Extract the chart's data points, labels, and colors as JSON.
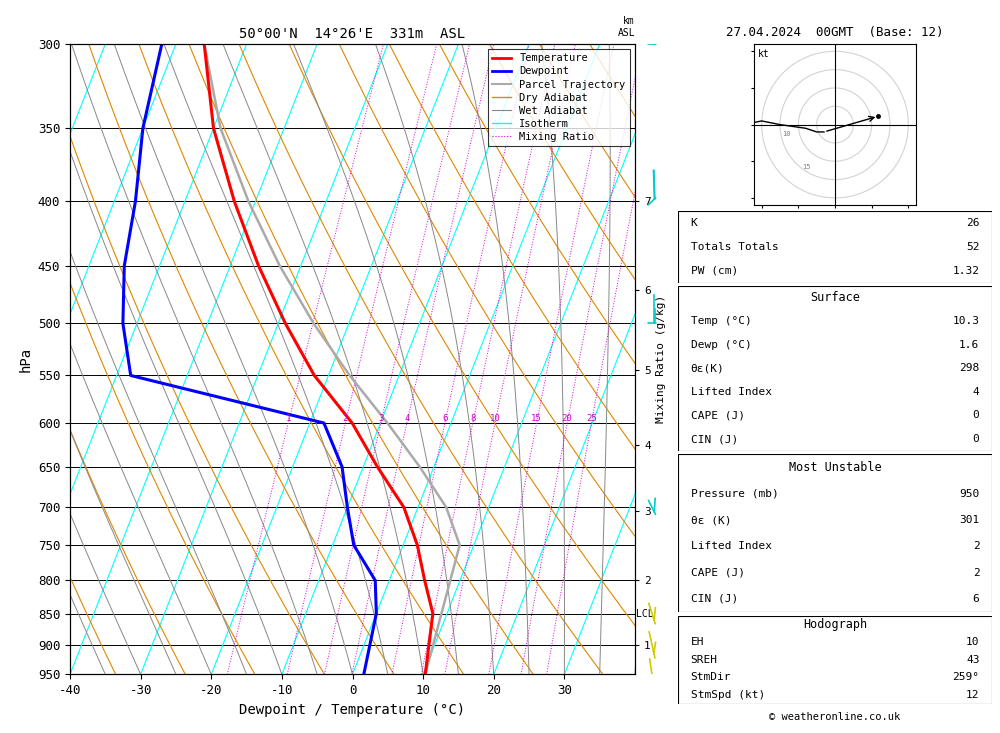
{
  "title_left": "50°00'N  14°26'E  331m  ASL",
  "title_right": "27.04.2024  00GMT  (Base: 12)",
  "xlabel": "Dewpoint / Temperature (°C)",
  "ylabel_left": "hPa",
  "pressure_ticks": [
    300,
    350,
    400,
    450,
    500,
    550,
    600,
    650,
    700,
    750,
    800,
    850,
    900,
    950
  ],
  "pmin": 300,
  "pmax": 950,
  "Tmin": -40,
  "Tmax": 40,
  "skew_factor": 35,
  "temp_profile_T": [
    -56,
    -50,
    -43,
    -36,
    -29,
    -22,
    -14,
    -8,
    -2,
    2,
    5,
    8,
    10.3
  ],
  "temp_profile_P": [
    300,
    350,
    400,
    450,
    500,
    550,
    600,
    650,
    700,
    750,
    800,
    850,
    950
  ],
  "dewp_profile_T": [
    -62,
    -60,
    -57,
    -55,
    -52,
    -48,
    -18,
    -13,
    -10,
    -7,
    -2,
    0,
    1.6
  ],
  "dewp_profile_P": [
    300,
    350,
    400,
    450,
    500,
    550,
    600,
    650,
    700,
    750,
    800,
    850,
    950
  ],
  "parcel_profile_T": [
    -56,
    -49,
    -41,
    -33,
    -25,
    -17,
    -9,
    -2,
    4,
    8,
    10.3
  ],
  "parcel_profile_P": [
    300,
    350,
    400,
    450,
    500,
    550,
    600,
    650,
    700,
    750,
    950
  ],
  "mixing_ratios": [
    1,
    2,
    3,
    4,
    6,
    8,
    10,
    15,
    20,
    25
  ],
  "lcl_pressure": 850,
  "km_ticks": {
    "7": 400,
    "6": 470,
    "5": 545,
    "4": 625,
    "3": 705,
    "2": 800,
    "1": 900
  },
  "stats": {
    "K": 26,
    "Totals_Totals": 52,
    "PW_cm": 1.32,
    "Surface_Temp_C": 10.3,
    "Surface_Dewp_C": 1.6,
    "theta_e_K": 298,
    "Lifted_Index": 4,
    "CAPE_J": 0,
    "CIN_J": 0,
    "MU_Pressure_mb": 950,
    "MU_theta_e_K": 301,
    "MU_Lifted_Index": 2,
    "MU_CAPE_J": 2,
    "MU_CIN_J": 6,
    "Hodograph_EH": 10,
    "Hodograph_SREH": 43,
    "StmDir_deg": 259,
    "StmSpd_kt": 12
  },
  "wind_barbs": {
    "pressures": [
      300,
      400,
      500,
      700,
      850,
      900,
      950
    ],
    "speeds_kt": [
      25,
      20,
      15,
      8,
      5,
      5,
      5
    ],
    "directions_deg": [
      270,
      280,
      270,
      250,
      240,
      230,
      220
    ],
    "colors": [
      "#00cccc",
      "#00cccc",
      "#00cccc",
      "#00cccc",
      "#cccc00",
      "#cccc00",
      "#cccc00"
    ]
  },
  "hodo_winds": {
    "u": [
      -25,
      -20,
      -15,
      -8,
      -5,
      -4,
      -3
    ],
    "v": [
      0,
      1,
      0,
      -1,
      -2,
      -2,
      -2
    ]
  }
}
